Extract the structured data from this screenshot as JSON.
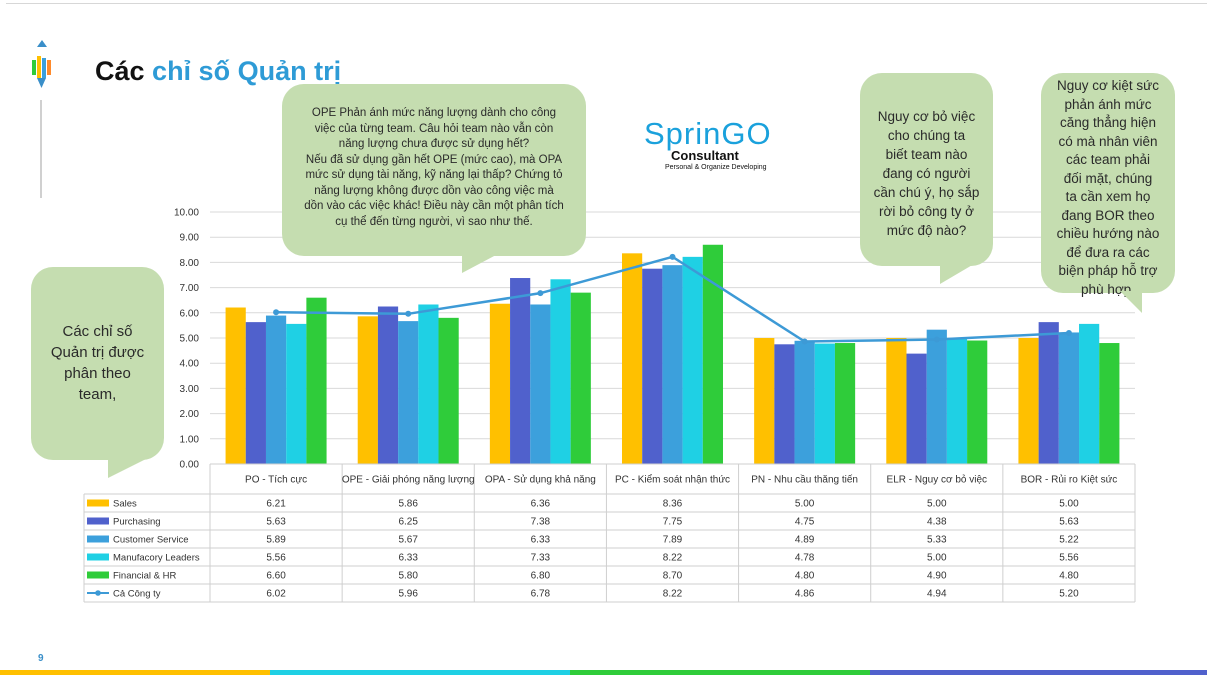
{
  "slide": {
    "title_prefix": "Các ",
    "title_highlight": "chỉ số Quản trị",
    "page_number": "9"
  },
  "brand": {
    "name": "SprinGO",
    "subtitle": "Consultant",
    "tagline": "Personal & Organize Developing"
  },
  "callouts": {
    "left": "Các chỉ số\nQuản trị được\nphân theo\nteam,",
    "ope": "OPE Phản ánh mức năng lượng dành cho công\nviệc của từng team. Câu hỏi team nào vẫn còn\nnăng lượng chưa được sử dụng hết?\nNếu đã sử dụng gần hết OPE (mức cao), mà OPA\nmức sử dụng tài năng, kỹ năng lại thấp? Chứng tỏ\nnăng lượng không được dồn vào công việc mà\ndồn vào các việc khác! Điều này cần một phân tích\ncụ thể đến từng người, vì sao như thế.",
    "elr": "Nguy cơ bỏ việc\ncho chúng ta\nbiết team nào\nđang có người\ncần chú ý, họ sắp\nrời bỏ công ty ở\nmức độ nào?",
    "bor": "Nguy cơ kiệt sức\nphản ánh mức\ncăng thẳng hiện\ncó mà nhân viên\ncác team phải\nđối mặt, chúng\nta cần xem họ\nđang BOR theo\nchiều hướng nào\nđể đưa ra các\nbiện pháp hỗ trợ\nphù hợp."
  },
  "chart_data": {
    "type": "bar",
    "categories": [
      "PO - Tích cực",
      "OPE - Giải phóng năng lượng",
      "OPA - Sử dụng khả năng",
      "PC - Kiểm soát nhận thức",
      "PN - Nhu cầu thăng tiến",
      "ELR - Nguy cơ bỏ việc",
      "BOR - Rủi ro Kiệt sức"
    ],
    "y_ticks": [
      "0.00",
      "1.00",
      "2.00",
      "3.00",
      "4.00",
      "5.00",
      "6.00",
      "7.00",
      "8.00",
      "9.00",
      "10.00"
    ],
    "ylim": [
      0,
      10
    ],
    "grid": true,
    "series": [
      {
        "name": "Sales",
        "type": "bar",
        "color": "#ffc000",
        "values": [
          6.21,
          5.86,
          6.36,
          8.36,
          5.0,
          5.0,
          5.0
        ],
        "labels": [
          "6.21",
          "5.86",
          "6.36",
          "8.36",
          "5.00",
          "5.00",
          "5.00"
        ]
      },
      {
        "name": "Purchasing",
        "type": "bar",
        "color": "#5061cc",
        "values": [
          5.63,
          6.25,
          7.38,
          7.75,
          4.75,
          4.38,
          5.63
        ],
        "labels": [
          "5.63",
          "6.25",
          "7.38",
          "7.75",
          "4.75",
          "4.38",
          "5.63"
        ]
      },
      {
        "name": "Customer Service",
        "type": "bar",
        "color": "#3ca0dc",
        "values": [
          5.89,
          5.67,
          6.33,
          7.89,
          4.89,
          5.33,
          5.22
        ],
        "labels": [
          "5.89",
          "5.67",
          "6.33",
          "7.89",
          "4.89",
          "5.33",
          "5.22"
        ]
      },
      {
        "name": "Manufacory Leaders",
        "type": "bar",
        "color": "#1fd0e4",
        "values": [
          5.56,
          6.33,
          7.33,
          8.22,
          4.78,
          5.0,
          5.56
        ],
        "labels": [
          "5.56",
          "6.33",
          "7.33",
          "8.22",
          "4.78",
          "5.00",
          "5.56"
        ]
      },
      {
        "name": "Financial & HR",
        "type": "bar",
        "color": "#2fcc3a",
        "values": [
          6.6,
          5.8,
          6.8,
          8.7,
          4.8,
          4.9,
          4.8
        ],
        "labels": [
          "6.60",
          "5.80",
          "6.80",
          "8.70",
          "4.80",
          "4.90",
          "4.80"
        ]
      },
      {
        "name": "Cả Công ty",
        "type": "line",
        "color": "#3d9ad6",
        "values": [
          6.02,
          5.96,
          6.78,
          8.22,
          4.86,
          4.94,
          5.2
        ],
        "labels": [
          "6.02",
          "5.96",
          "6.78",
          "8.22",
          "4.86",
          "4.94",
          "5.20"
        ]
      }
    ]
  }
}
